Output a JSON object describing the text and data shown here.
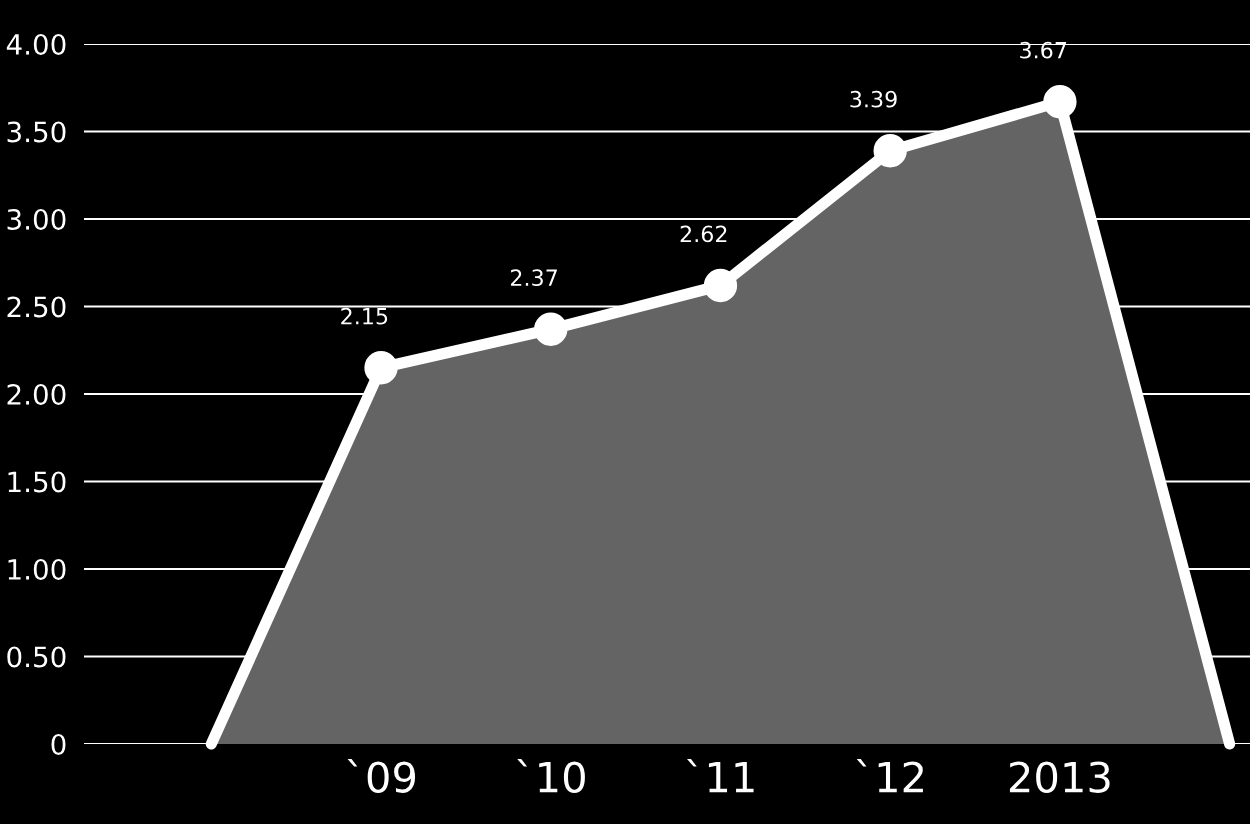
{
  "chart_data": {
    "type": "area",
    "categories": [
      null,
      "`09",
      "`10",
      "`11",
      "`12",
      "2013",
      null
    ],
    "series": [
      {
        "color": "#646464",
        "values": [
          0,
          2.15,
          2.37,
          2.62,
          3.39,
          3.67,
          0
        ],
        "value_labels": [
          null,
          "2.15",
          "2.37",
          "2.62",
          "3.39",
          "3.67",
          null
        ]
      }
    ],
    "ylim": [
      0,
      4.0
    ],
    "yticks": [
      {
        "value": 0,
        "label": "0"
      },
      {
        "value": 0.5,
        "label": "0.50"
      },
      {
        "value": 1,
        "label": "1.00"
      },
      {
        "value": 1.5,
        "label": "1.50"
      },
      {
        "value": 2,
        "label": "2.00"
      },
      {
        "value": 2.5,
        "label": "2.50"
      },
      {
        "value": 3,
        "label": "3.00"
      },
      {
        "value": 3.5,
        "label": "3.50"
      },
      {
        "value": 4,
        "label": "4.00"
      }
    ],
    "grid": "y",
    "marker": "circle",
    "line_style": "solid"
  }
}
